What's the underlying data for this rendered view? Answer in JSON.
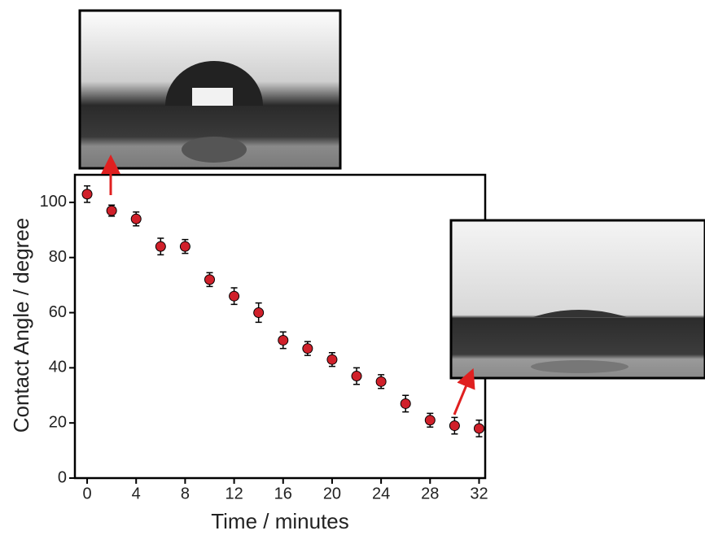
{
  "chart_data": {
    "type": "scatter",
    "x_label": "Time / minutes",
    "y_label": "Contact Angle / degree",
    "x": [
      0,
      2,
      4,
      6,
      8,
      10,
      12,
      14,
      16,
      18,
      20,
      22,
      24,
      26,
      28,
      30,
      32
    ],
    "series": [
      {
        "color": "#d0202a",
        "values": [
          103,
          97,
          94,
          84,
          84,
          72,
          66,
          60,
          50,
          47,
          43,
          37,
          35,
          27,
          21,
          19,
          18
        ],
        "errors": [
          3,
          2,
          2.5,
          3,
          2.5,
          2.5,
          3,
          3.5,
          3,
          2.5,
          2.5,
          3,
          2.5,
          3,
          2.5,
          3,
          3
        ]
      }
    ],
    "xlim": [
      -1,
      32.5
    ],
    "ylim": [
      0,
      110
    ],
    "xticks": [
      0,
      4,
      8,
      12,
      16,
      20,
      24,
      28,
      32
    ],
    "yticks": [
      0,
      20,
      40,
      60,
      80,
      100
    ]
  }
}
